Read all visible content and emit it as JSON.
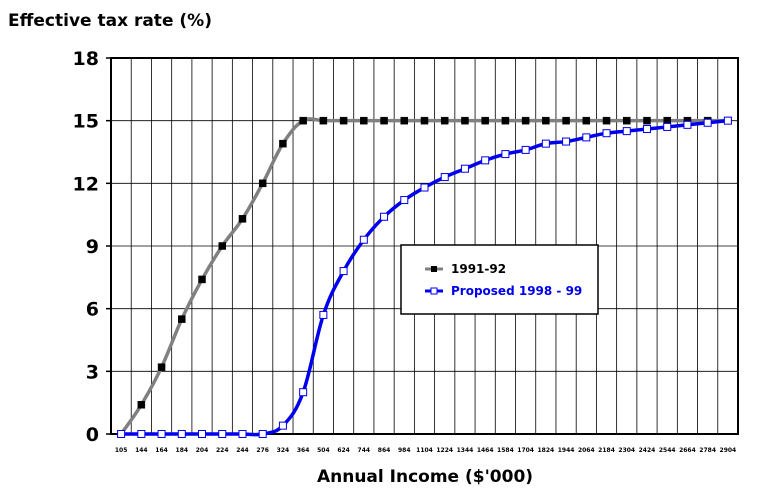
{
  "chart_data": {
    "type": "line",
    "ylabel": "Effective tax rate (%)",
    "xlabel": "Annual Income ($'000)",
    "ylim": [
      0,
      18
    ],
    "yticks": [
      "0",
      "3",
      "6",
      "9",
      "12",
      "15",
      "18"
    ],
    "grid": true,
    "legend_position": "center-right",
    "x": [
      "105",
      "144",
      "164",
      "184",
      "204",
      "224",
      "244",
      "276",
      "324",
      "364",
      "504",
      "624",
      "744",
      "864",
      "984",
      "1104",
      "1224",
      "1344",
      "1464",
      "1584",
      "1704",
      "1824",
      "1944",
      "2064",
      "2184",
      "2304",
      "2424",
      "2544",
      "2664",
      "2784",
      "2904"
    ],
    "series": [
      {
        "name": "1991-92",
        "color": "#808080",
        "marker_color": "#000000",
        "marker": "filled-square",
        "values": [
          0,
          1.4,
          3.2,
          5.5,
          7.4,
          9.0,
          10.3,
          12.0,
          13.9,
          15,
          15,
          15,
          15,
          15,
          15,
          15,
          15,
          15,
          15,
          15,
          15,
          15,
          15,
          15,
          15,
          15,
          15,
          15,
          15,
          15,
          15
        ]
      },
      {
        "name": "Proposed 1998 - 99",
        "color": "#0000ee",
        "marker_color": "#ffffff",
        "marker": "open-square",
        "values": [
          0,
          0,
          0,
          0,
          0,
          0,
          0,
          0,
          0.4,
          2.0,
          5.7,
          7.8,
          9.3,
          10.4,
          11.2,
          11.8,
          12.3,
          12.7,
          13.1,
          13.4,
          13.6,
          13.9,
          14.0,
          14.2,
          14.4,
          14.5,
          14.6,
          14.7,
          14.8,
          14.9,
          15.0
        ]
      }
    ]
  }
}
